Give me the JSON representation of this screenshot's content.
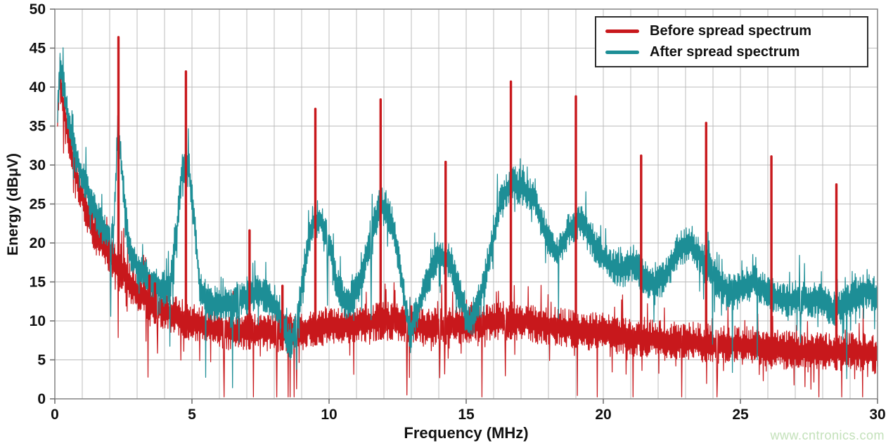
{
  "watermark": "www.cntronics.com",
  "colors": {
    "before_red": "#c8181c",
    "after_teal": "#1d8e96",
    "grid": "#bcbcbc",
    "frame": "#8a8a8a",
    "tick": "#6b6b6b",
    "label": "#111111",
    "watermark_green": "#c3e1ba",
    "legend_border": "#2e2e2e",
    "background": "#ffffff"
  },
  "legend": {
    "position": "top-right",
    "items": [
      {
        "label": "Before spread spectrum",
        "color": "#c8181c"
      },
      {
        "label": "After spread spectrum",
        "color": "#1d8e96"
      }
    ]
  },
  "chart_data": {
    "type": "line",
    "title": "",
    "xlabel": "Frequency (MHz)",
    "ylabel": "Energy (dBμV)",
    "xlim": [
      0,
      30
    ],
    "ylim": [
      0,
      50
    ],
    "x_ticks": [
      0,
      5,
      10,
      15,
      20,
      25,
      30
    ],
    "y_ticks": [
      0,
      5,
      10,
      15,
      20,
      25,
      30,
      35,
      40,
      45,
      50
    ],
    "x_minor_gridline_step_mhz": 1,
    "y_gridline_step_db": 5,
    "grid": true,
    "legend_position": "top-right",
    "series": [
      {
        "name": "Before spread spectrum",
        "color": "#c8181c",
        "style": "noisy-band",
        "noise_halfwidth_db": 2.5,
        "envelope": [
          [
            0.1,
            36
          ],
          [
            0.18,
            42
          ],
          [
            0.35,
            37
          ],
          [
            0.6,
            31.5
          ],
          [
            0.9,
            27
          ],
          [
            1.2,
            23.5
          ],
          [
            1.5,
            21
          ],
          [
            1.8,
            19.5
          ],
          [
            2.1,
            18
          ],
          [
            2.4,
            16.5
          ],
          [
            2.7,
            15
          ],
          [
            3.0,
            13.8
          ],
          [
            3.4,
            12.6
          ],
          [
            3.8,
            11.6
          ],
          [
            4.2,
            11
          ],
          [
            4.6,
            10.4
          ],
          [
            5.0,
            9.8
          ],
          [
            5.5,
            9.2
          ],
          [
            6.0,
            8.9
          ],
          [
            6.5,
            8.7
          ],
          [
            7.0,
            8.7
          ],
          [
            7.5,
            8.6
          ],
          [
            8.0,
            8.5
          ],
          [
            8.5,
            8.6
          ],
          [
            9.0,
            8.9
          ],
          [
            9.5,
            9.2
          ],
          [
            10.0,
            9.4
          ],
          [
            10.5,
            9.4
          ],
          [
            11.0,
            9.6
          ],
          [
            11.5,
            9.8
          ],
          [
            12.0,
            10
          ],
          [
            12.5,
            9.8
          ],
          [
            13.0,
            9.5
          ],
          [
            13.5,
            9.2
          ],
          [
            14.0,
            9.2
          ],
          [
            14.5,
            9.4
          ],
          [
            15.0,
            9.6
          ],
          [
            15.5,
            9.8
          ],
          [
            16.0,
            10
          ],
          [
            16.5,
            10
          ],
          [
            17.0,
            9.9
          ],
          [
            17.5,
            9.7
          ],
          [
            18.0,
            9.4
          ],
          [
            18.5,
            9.1
          ],
          [
            19.0,
            8.9
          ],
          [
            19.5,
            8.7
          ],
          [
            20.0,
            8.4
          ],
          [
            20.5,
            8.1
          ],
          [
            21.0,
            7.9
          ],
          [
            21.5,
            7.7
          ],
          [
            22.0,
            7.6
          ],
          [
            22.5,
            7.4
          ],
          [
            23.0,
            7.3
          ],
          [
            23.5,
            7.2
          ],
          [
            24.0,
            7.0
          ],
          [
            24.5,
            6.9
          ],
          [
            25.0,
            6.9
          ],
          [
            25.5,
            6.8
          ],
          [
            26.0,
            6.6
          ],
          [
            26.5,
            6.3
          ],
          [
            27.0,
            6.1
          ],
          [
            27.5,
            6.0
          ],
          [
            28.0,
            6.0
          ],
          [
            28.5,
            6.0
          ],
          [
            29.0,
            6.1
          ],
          [
            29.5,
            5.9
          ],
          [
            30.0,
            5.7
          ]
        ],
        "harmonic_spikes_x_peak": [
          [
            2.32,
            46.4
          ],
          [
            3.45,
            15.8
          ],
          [
            3.65,
            14.8
          ],
          [
            4.78,
            42.0
          ],
          [
            7.1,
            21.6
          ],
          [
            8.3,
            14.5
          ],
          [
            9.5,
            37.2
          ],
          [
            11.88,
            38.4
          ],
          [
            14.25,
            30.4
          ],
          [
            16.63,
            40.7
          ],
          [
            19.0,
            38.8
          ],
          [
            21.38,
            31.2
          ],
          [
            23.75,
            35.4
          ],
          [
            26.13,
            31.1
          ],
          [
            28.5,
            27.5
          ]
        ]
      },
      {
        "name": "After spread spectrum",
        "color": "#1d8e96",
        "style": "noisy-band",
        "noise_halfwidth_db": 2.3,
        "envelope": [
          [
            0.1,
            37
          ],
          [
            0.2,
            43
          ],
          [
            0.4,
            38
          ],
          [
            0.7,
            32
          ],
          [
            1.0,
            28.5
          ],
          [
            1.3,
            25.5
          ],
          [
            1.6,
            23
          ],
          [
            1.9,
            21
          ],
          [
            2.15,
            21.5
          ],
          [
            2.3,
            35.5
          ],
          [
            2.45,
            29
          ],
          [
            2.7,
            19
          ],
          [
            3.0,
            17
          ],
          [
            3.4,
            15.5
          ],
          [
            3.8,
            14.2
          ],
          [
            4.2,
            14
          ],
          [
            4.45,
            22
          ],
          [
            4.65,
            29.5
          ],
          [
            4.9,
            29.5
          ],
          [
            5.1,
            22
          ],
          [
            5.3,
            14
          ],
          [
            5.7,
            12.3
          ],
          [
            6.1,
            12
          ],
          [
            6.5,
            12.4
          ],
          [
            7.0,
            13
          ],
          [
            7.4,
            13.6
          ],
          [
            7.8,
            13
          ],
          [
            8.2,
            11
          ],
          [
            8.55,
            7
          ],
          [
            8.8,
            9
          ],
          [
            9.1,
            17
          ],
          [
            9.4,
            22.5
          ],
          [
            9.7,
            23
          ],
          [
            10.0,
            20
          ],
          [
            10.3,
            14.5
          ],
          [
            10.6,
            12.5
          ],
          [
            10.9,
            13
          ],
          [
            11.2,
            16
          ],
          [
            11.5,
            20.5
          ],
          [
            11.8,
            24.5
          ],
          [
            12.1,
            24.5
          ],
          [
            12.4,
            21
          ],
          [
            12.7,
            14
          ],
          [
            12.95,
            8.5
          ],
          [
            13.2,
            11
          ],
          [
            13.6,
            15.5
          ],
          [
            14.0,
            18.5
          ],
          [
            14.4,
            17.5
          ],
          [
            14.8,
            13
          ],
          [
            15.15,
            9.5
          ],
          [
            15.5,
            13
          ],
          [
            15.9,
            19
          ],
          [
            16.3,
            26
          ],
          [
            16.7,
            27.5
          ],
          [
            17.1,
            27
          ],
          [
            17.5,
            25.5
          ],
          [
            17.9,
            21
          ],
          [
            18.3,
            18.5
          ],
          [
            18.7,
            21.5
          ],
          [
            19.1,
            23
          ],
          [
            19.5,
            21
          ],
          [
            19.9,
            18.5
          ],
          [
            20.3,
            17
          ],
          [
            20.7,
            16.5
          ],
          [
            21.1,
            17.5
          ],
          [
            21.5,
            15.5
          ],
          [
            21.9,
            14.5
          ],
          [
            22.3,
            16
          ],
          [
            22.7,
            19
          ],
          [
            23.1,
            20
          ],
          [
            23.5,
            18.5
          ],
          [
            23.9,
            16.5
          ],
          [
            24.3,
            14.5
          ],
          [
            24.7,
            13.5
          ],
          [
            25.1,
            14.5
          ],
          [
            25.5,
            15
          ],
          [
            25.9,
            14
          ],
          [
            26.3,
            13
          ],
          [
            26.7,
            12.5
          ],
          [
            27.1,
            13
          ],
          [
            27.5,
            12.5
          ],
          [
            27.9,
            13
          ],
          [
            28.3,
            11.5
          ],
          [
            28.7,
            11.8
          ],
          [
            29.1,
            13
          ],
          [
            29.5,
            14
          ],
          [
            30.0,
            13.2
          ]
        ],
        "harmonic_spikes_x_peak": []
      }
    ]
  }
}
